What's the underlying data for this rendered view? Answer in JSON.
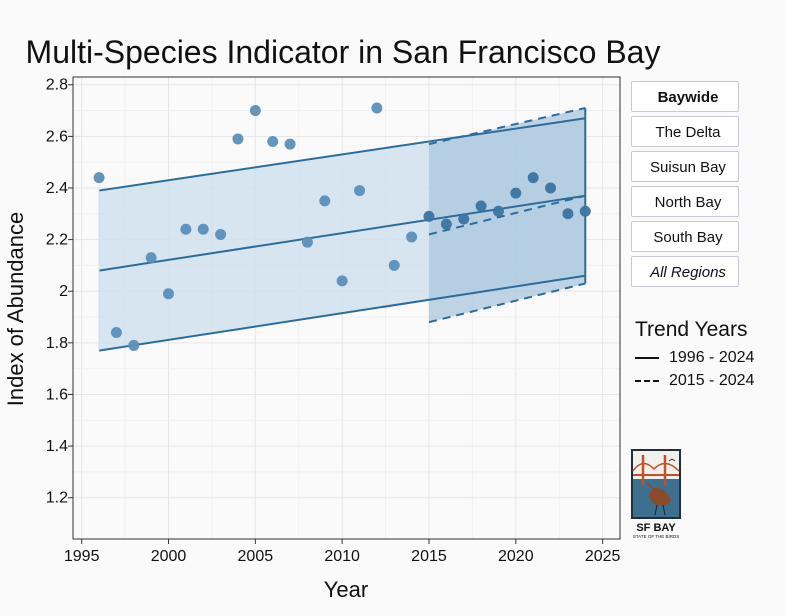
{
  "chart_data": {
    "type": "scatter",
    "title": "Multi-Species Indicator in San Francisco Bay",
    "xlabel": "Year",
    "ylabel": "Index of Abundance",
    "xlim": [
      1994.5,
      2026
    ],
    "ylim": [
      1.04,
      2.83
    ],
    "xticks": [
      1995,
      2000,
      2005,
      2010,
      2015,
      2020,
      2025
    ],
    "yticks": [
      1.2,
      1.4,
      1.6,
      1.8,
      2,
      2.2,
      2.4,
      2.6,
      2.8
    ],
    "ytick_labels": [
      "1.2",
      "1.4",
      "1.6",
      "1.8",
      "2",
      "2.2",
      "2.4",
      "2.6",
      "2.8"
    ],
    "grid": true,
    "points": {
      "x": [
        1996,
        1997,
        1998,
        1999,
        2000,
        2001,
        2002,
        2003,
        2004,
        2005,
        2006,
        2007,
        2008,
        2009,
        2010,
        2011,
        2012,
        2013,
        2014,
        2015,
        2016,
        2017,
        2018,
        2019,
        2020,
        2021,
        2022,
        2023,
        2024
      ],
      "y": [
        2.44,
        1.84,
        1.79,
        2.13,
        1.99,
        2.24,
        2.24,
        2.22,
        2.59,
        2.7,
        2.58,
        2.57,
        2.19,
        2.35,
        2.04,
        2.39,
        2.71,
        2.1,
        2.21,
        2.29,
        2.26,
        2.28,
        2.33,
        2.31,
        2.38,
        2.44,
        2.4,
        2.3,
        2.31
      ]
    },
    "trends": [
      {
        "name": "1996 - 2024",
        "style": "solid",
        "x": [
          1996,
          2024
        ],
        "fit": [
          2.08,
          2.37
        ],
        "lower": [
          1.77,
          2.06
        ],
        "upper": [
          2.39,
          2.67
        ]
      },
      {
        "name": "2015 - 2024",
        "style": "dashed",
        "x": [
          2015,
          2024
        ],
        "fit": [
          2.22,
          2.37
        ],
        "lower": [
          1.88,
          2.03
        ],
        "upper": [
          2.57,
          2.71
        ]
      }
    ],
    "colors": {
      "point_early": "#5b8fb9",
      "point_recent": "#3a74a2",
      "line": "#2c6c9c",
      "band_long": "#cfe0ec",
      "band_recent": "#a9c6dc"
    }
  },
  "regions": {
    "items": [
      {
        "label": "Baywide",
        "active": true,
        "italic": false
      },
      {
        "label": "The Delta",
        "active": false,
        "italic": false
      },
      {
        "label": "Suisun Bay",
        "active": false,
        "italic": false
      },
      {
        "label": "North Bay",
        "active": false,
        "italic": false
      },
      {
        "label": "South Bay",
        "active": false,
        "italic": false
      },
      {
        "label": "All Regions",
        "active": false,
        "italic": true
      }
    ]
  },
  "legend": {
    "title": "Trend Years",
    "items": [
      {
        "label": "1996 - 2024",
        "style": "solid"
      },
      {
        "label": "2015 - 2024",
        "style": "dashed"
      }
    ]
  },
  "logo": {
    "icon": "golden-gate-bridge-bird-icon",
    "title": "SF BAY",
    "subtitle": "STATE OF THE BIRDS"
  }
}
